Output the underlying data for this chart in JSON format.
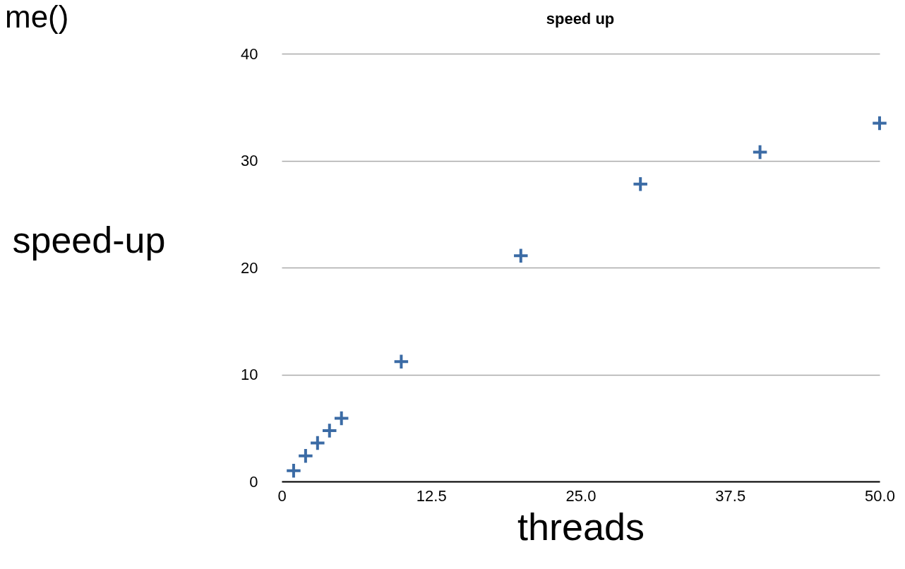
{
  "chart_data": {
    "type": "scatter",
    "title": "speed up",
    "xlabel": "threads",
    "ylabel": "speed-up",
    "annotations": [
      "me()"
    ],
    "x": [
      1,
      2,
      3,
      4,
      5,
      10,
      20,
      30,
      40,
      50
    ],
    "series": [
      {
        "color": "#3b6ba5",
        "values": [
          1.0,
          2.4,
          3.6,
          4.75,
          5.9,
          11.2,
          21.1,
          27.8,
          30.8,
          33.5
        ]
      }
    ],
    "xlim": [
      0,
      50
    ],
    "xticks": [
      0,
      12.5,
      {
        "value": 25,
        "label": "25.0"
      },
      37.5,
      {
        "value": 50,
        "label": "50.0"
      }
    ],
    "ylim": [
      0,
      40
    ],
    "yticks": [
      0,
      10,
      20,
      30,
      40
    ],
    "grid": "y",
    "marker": "cross"
  }
}
